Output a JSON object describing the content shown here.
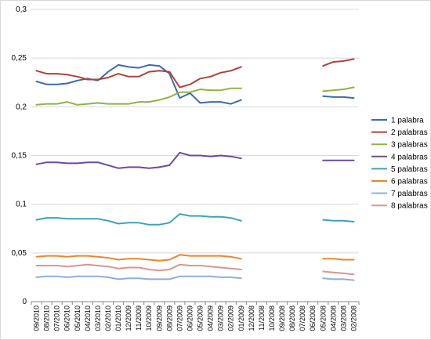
{
  "chart_data": {
    "type": "line",
    "title": "",
    "xlabel": "",
    "ylabel": "",
    "ylim": [
      0,
      0.3
    ],
    "yticks": [
      0,
      0.05,
      0.1,
      0.15,
      0.2,
      0.25,
      0.3
    ],
    "ytick_labels": [
      "0",
      "0,05",
      "0,1",
      "0,15",
      "0,2",
      "0,25",
      "0,3"
    ],
    "grid": "horizontal",
    "legend": "right",
    "categories": [
      "09/2010",
      "08/2010",
      "07/2010",
      "06/2010",
      "05/2010",
      "04/2010",
      "03/2010",
      "02/2010",
      "01/2010",
      "12/2009",
      "11/2009",
      "10/2009",
      "09/2009",
      "08/2009",
      "07/2009",
      "06/2009",
      "05/2009",
      "04/2009",
      "03/2009",
      "02/2009",
      "01/2009",
      "12/2008",
      "11/2008",
      "10/2008",
      "09/2008",
      "08/2008",
      "07/2008",
      "06/2008",
      "05/2008",
      "04/2008",
      "03/2008",
      "02/2008"
    ],
    "series": [
      {
        "name": "1 palabra",
        "color": "#3D6BA8",
        "values": [
          0.226,
          0.223,
          0.223,
          0.224,
          0.227,
          0.229,
          0.227,
          0.236,
          0.243,
          0.241,
          0.24,
          0.243,
          0.242,
          0.234,
          0.209,
          0.214,
          0.204,
          0.205,
          0.205,
          0.203,
          0.207,
          null,
          null,
          null,
          null,
          null,
          null,
          null,
          0.211,
          0.21,
          0.21,
          0.209
        ]
      },
      {
        "name": "2 palabras",
        "color": "#B0423D",
        "values": [
          0.237,
          0.234,
          0.234,
          0.233,
          0.231,
          0.228,
          0.228,
          0.23,
          0.234,
          0.231,
          0.231,
          0.236,
          0.237,
          0.236,
          0.22,
          0.223,
          0.229,
          0.231,
          0.235,
          0.237,
          0.241,
          null,
          null,
          null,
          null,
          null,
          null,
          null,
          0.242,
          0.246,
          0.247,
          0.249
        ]
      },
      {
        "name": "3 palabras",
        "color": "#8FB247",
        "values": [
          0.202,
          0.203,
          0.203,
          0.205,
          0.202,
          0.203,
          0.204,
          0.203,
          0.203,
          0.203,
          0.205,
          0.205,
          0.207,
          0.21,
          0.215,
          0.215,
          0.218,
          0.217,
          0.217,
          0.219,
          0.219,
          null,
          null,
          null,
          null,
          null,
          null,
          null,
          0.216,
          0.217,
          0.218,
          0.22
        ]
      },
      {
        "name": "4 palabras",
        "color": "#6B4C9A",
        "values": [
          0.141,
          0.143,
          0.143,
          0.142,
          0.142,
          0.143,
          0.143,
          0.14,
          0.137,
          0.138,
          0.138,
          0.137,
          0.138,
          0.14,
          0.153,
          0.15,
          0.15,
          0.149,
          0.15,
          0.149,
          0.147,
          null,
          null,
          null,
          null,
          null,
          null,
          null,
          0.145,
          0.145,
          0.145,
          0.145
        ]
      },
      {
        "name": "5 palabras",
        "color": "#3EA3B8",
        "values": [
          0.084,
          0.086,
          0.086,
          0.085,
          0.085,
          0.085,
          0.085,
          0.083,
          0.08,
          0.081,
          0.081,
          0.079,
          0.079,
          0.081,
          0.09,
          0.088,
          0.088,
          0.087,
          0.087,
          0.086,
          0.083,
          null,
          null,
          null,
          null,
          null,
          null,
          null,
          0.084,
          0.083,
          0.083,
          0.082
        ]
      },
      {
        "name": "6 palabras",
        "color": "#E8862F",
        "values": [
          0.046,
          0.047,
          0.047,
          0.046,
          0.047,
          0.047,
          0.046,
          0.045,
          0.043,
          0.044,
          0.044,
          0.043,
          0.042,
          0.043,
          0.048,
          0.047,
          0.047,
          0.047,
          0.047,
          0.046,
          0.044,
          null,
          null,
          null,
          null,
          null,
          null,
          null,
          0.044,
          0.044,
          0.043,
          0.043
        ]
      },
      {
        "name": "7 palabras",
        "color": "#8FAED8",
        "values": [
          0.025,
          0.026,
          0.026,
          0.025,
          0.026,
          0.026,
          0.026,
          0.025,
          0.023,
          0.024,
          0.024,
          0.023,
          0.023,
          0.023,
          0.026,
          0.026,
          0.026,
          0.026,
          0.025,
          0.025,
          0.024,
          null,
          null,
          null,
          null,
          null,
          null,
          null,
          0.024,
          0.023,
          0.023,
          0.022
        ]
      },
      {
        "name": "8 palabras",
        "color": "#D99594",
        "values": [
          0.037,
          0.037,
          0.037,
          0.036,
          0.037,
          0.038,
          0.037,
          0.036,
          0.034,
          0.035,
          0.035,
          0.033,
          0.032,
          0.033,
          0.038,
          0.037,
          0.037,
          0.036,
          0.035,
          0.034,
          0.033,
          null,
          null,
          null,
          null,
          null,
          null,
          null,
          0.031,
          0.03,
          0.029,
          0.028
        ]
      }
    ]
  }
}
